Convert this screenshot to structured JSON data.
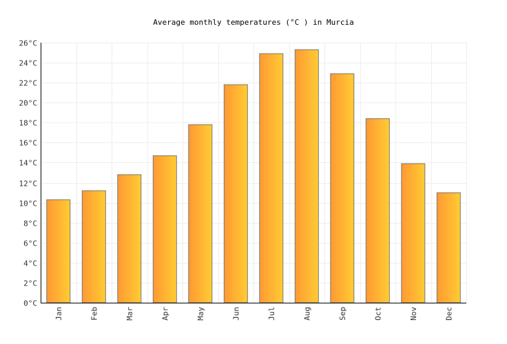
{
  "chart_data": {
    "type": "bar",
    "title": "Average monthly temperatures (°C ) in Murcia",
    "xlabel": "",
    "ylabel": "",
    "categories": [
      "Jan",
      "Feb",
      "Mar",
      "Apr",
      "May",
      "Jun",
      "Jul",
      "Aug",
      "Sep",
      "Oct",
      "Nov",
      "Dec"
    ],
    "values": [
      10.3,
      11.2,
      12.8,
      14.7,
      17.8,
      21.8,
      24.9,
      25.3,
      22.9,
      18.4,
      13.9,
      11.0
    ],
    "ylim": [
      0,
      26
    ],
    "ytick_step": 2,
    "ytick_suffix": "°C",
    "grid": true,
    "legend": "none",
    "colors": {
      "bar_left": "#ff9933",
      "bar_right": "#ffcc33",
      "bar_stroke": "#777777",
      "grid": "#eeeeee",
      "axis": "#000000"
    }
  }
}
